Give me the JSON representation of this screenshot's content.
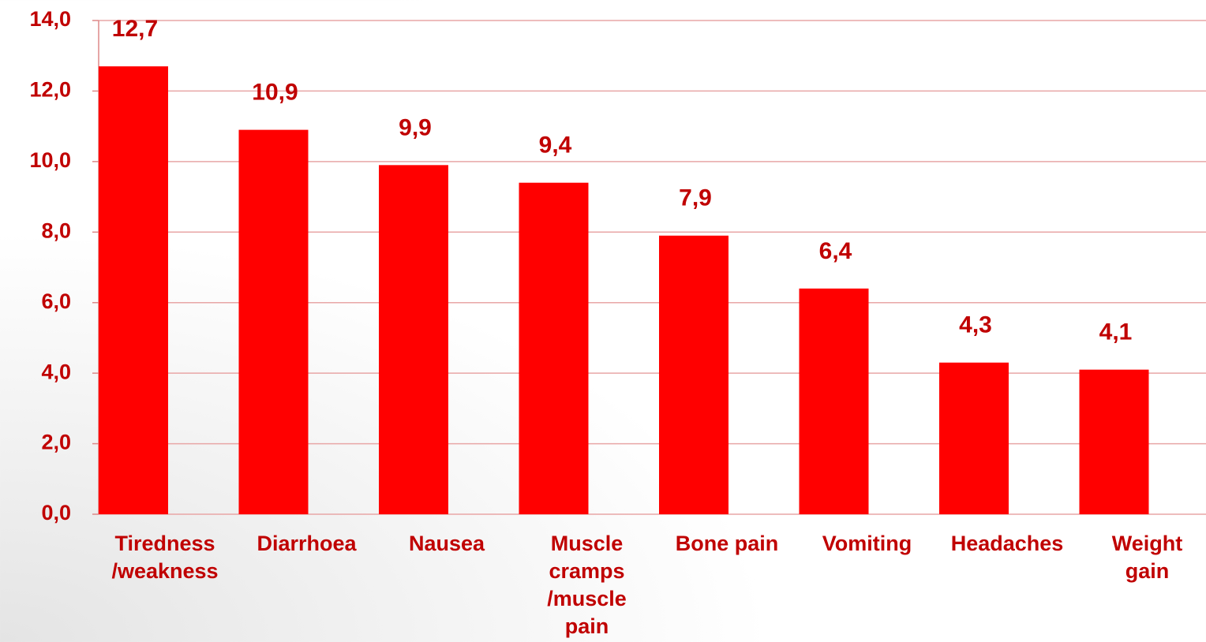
{
  "chart_data": {
    "type": "bar",
    "categories": [
      "Tiredness\n/weakness",
      "Diarrhoea",
      "Nausea",
      "Muscle\ncramps\n/muscle\npain",
      "Bone pain",
      "Vomiting",
      "Headaches",
      "Weight\ngain"
    ],
    "values": [
      12.7,
      10.9,
      9.9,
      9.4,
      7.9,
      6.4,
      4.3,
      4.1
    ],
    "value_labels": [
      "12,7",
      "10,9",
      "9,9",
      "9,4",
      "7,9",
      "6,4",
      "4,3",
      "4,1"
    ],
    "color": "#ff0000",
    "ylim": [
      0,
      14
    ],
    "yticks": [
      {
        "value": 0,
        "label": "0,0"
      },
      {
        "value": 2,
        "label": "2,0"
      },
      {
        "value": 4,
        "label": "4,0"
      },
      {
        "value": 6,
        "label": "6,0"
      },
      {
        "value": 8,
        "label": "8,0"
      },
      {
        "value": 10,
        "label": "10,0"
      },
      {
        "value": 12,
        "label": "12,0"
      },
      {
        "value": 14,
        "label": "14,0"
      }
    ],
    "grid": true
  }
}
